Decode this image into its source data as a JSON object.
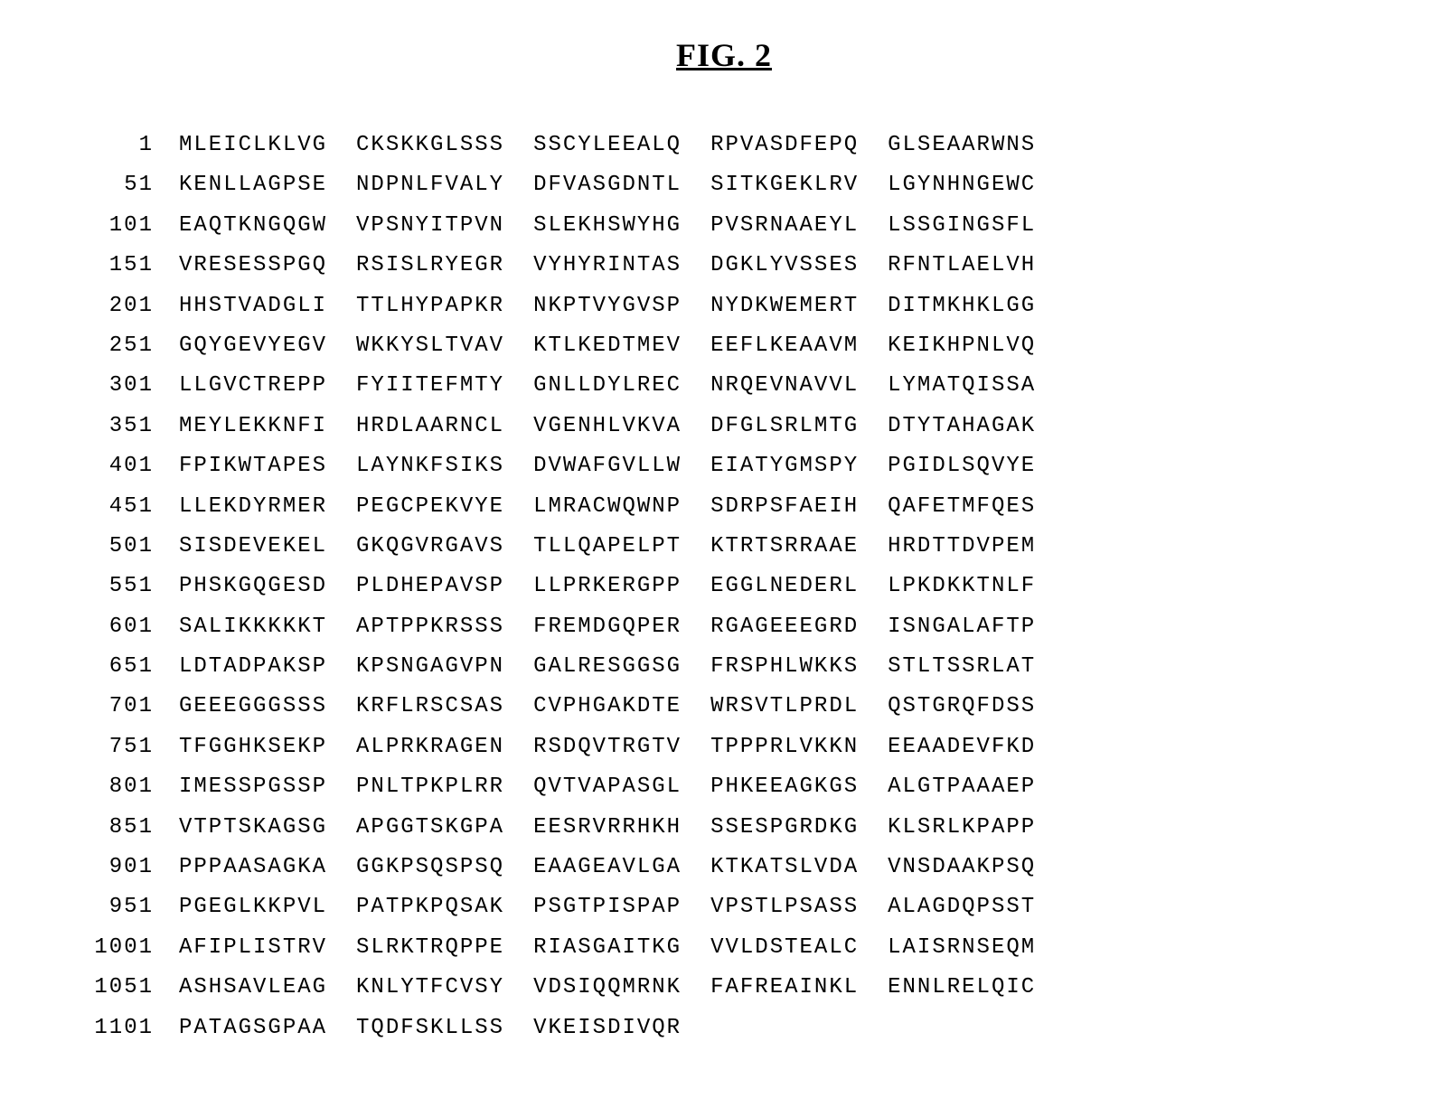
{
  "figure": {
    "title": "FIG. 2",
    "title_fontsize": 36,
    "title_font_family": "Georgia, Times New Roman, serif",
    "title_weight": "bold",
    "title_decoration": "underline"
  },
  "sequence": {
    "type": "protein_sequence_listing",
    "font_family": "Courier New, monospace",
    "font_size": 24,
    "letter_spacing": 2,
    "block_width": 10,
    "blocks_per_row": 5,
    "row_gap": 6,
    "block_gap": 32,
    "background_color": "#ffffff",
    "text_color": "#000000",
    "rows": [
      {
        "pos": "1",
        "blocks": [
          "MLEICLKLVG",
          "CKSKKGLSSS",
          "SSCYLEEALQ",
          "RPVASDFEPQ",
          "GLSEAARWNS"
        ]
      },
      {
        "pos": "51",
        "blocks": [
          "KENLLAGPSE",
          "NDPNLFVALY",
          "DFVASGDNTL",
          "SITKGEKLRV",
          "LGYNHNGEWC"
        ]
      },
      {
        "pos": "101",
        "blocks": [
          "EAQTKNGQGW",
          "VPSNYITPVN",
          "SLEKHSWYHG",
          "PVSRNAAEYL",
          "LSSGINGSFL"
        ]
      },
      {
        "pos": "151",
        "blocks": [
          "VRESESSPGQ",
          "RSISLRYEGR",
          "VYHYRINTAS",
          "DGKLYVSSES",
          "RFNTLAELVH"
        ]
      },
      {
        "pos": "201",
        "blocks": [
          "HHSTVADGLI",
          "TTLHYPAPKR",
          "NKPTVYGVSP",
          "NYDKWEMERT",
          "DITMKHKLGG"
        ]
      },
      {
        "pos": "251",
        "blocks": [
          "GQYGEVYEGV",
          "WKKYSLTVAV",
          "KTLKEDTMEV",
          "EEFLKEAAVM",
          "KEIKHPNLVQ"
        ]
      },
      {
        "pos": "301",
        "blocks": [
          "LLGVCTREPP",
          "FYIITEFMTY",
          "GNLLDYLREC",
          "NRQEVNAVVL",
          "LYMATQISSA"
        ]
      },
      {
        "pos": "351",
        "blocks": [
          "MEYLEKKNFI",
          "HRDLAARNCL",
          "VGENHLVKVA",
          "DFGLSRLMTG",
          "DTYTAHAGAK"
        ]
      },
      {
        "pos": "401",
        "blocks": [
          "FPIKWTAPES",
          "LAYNKFSIKS",
          "DVWAFGVLLW",
          "EIATYGMSPY",
          "PGIDLSQVYE"
        ]
      },
      {
        "pos": "451",
        "blocks": [
          "LLEKDYRMER",
          "PEGCPEKVYE",
          "LMRACWQWNP",
          "SDRPSFAEIH",
          "QAFETMFQES"
        ]
      },
      {
        "pos": "501",
        "blocks": [
          "SISDEVEKEL",
          "GKQGVRGAVS",
          "TLLQAPELPT",
          "KTRTSRRAAE",
          "HRDTTDVPEM"
        ]
      },
      {
        "pos": "551",
        "blocks": [
          "PHSKGQGESD",
          "PLDHEPAVSP",
          "LLPRKERGPP",
          "EGGLNEDERL",
          "LPKDKKTNLF"
        ]
      },
      {
        "pos": "601",
        "blocks": [
          "SALIKKKKKT",
          "APTPPKRSSS",
          "FREMDGQPER",
          "RGAGEEEGRD",
          "ISNGALAFTP"
        ]
      },
      {
        "pos": "651",
        "blocks": [
          "LDTADPAKSP",
          "KPSNGAGVPN",
          "GALRESGGSG",
          "FRSPHLWKKS",
          "STLTSSRLAT"
        ]
      },
      {
        "pos": "701",
        "blocks": [
          "GEEEGGGSSS",
          "KRFLRSCSAS",
          "CVPHGAKDTE",
          "WRSVTLPRDL",
          "QSTGRQFDSS"
        ]
      },
      {
        "pos": "751",
        "blocks": [
          "TFGGHKSEKP",
          "ALPRKRAGEN",
          "RSDQVTRGTV",
          "TPPPRLVKKN",
          "EEAADEVFKD"
        ]
      },
      {
        "pos": "801",
        "blocks": [
          "IMESSPGSSP",
          "PNLTPKPLRR",
          "QVTVAPASGL",
          "PHKEEAGKGS",
          "ALGTPAAAEP"
        ]
      },
      {
        "pos": "851",
        "blocks": [
          "VTPTSKAGSG",
          "APGGTSKGPA",
          "EESRVRRHKH",
          "SSESPGRDKG",
          "KLSRLKPAPP"
        ]
      },
      {
        "pos": "901",
        "blocks": [
          "PPPAASAGKA",
          "GGKPSQSPSQ",
          "EAAGEAVLGA",
          "KTKATSLVDA",
          "VNSDAAKPSQ"
        ]
      },
      {
        "pos": "951",
        "blocks": [
          "PGEGLKKPVL",
          "PATPKPQSAK",
          "PSGTPISPAP",
          "VPSTLPSASS",
          "ALAGDQPSST"
        ]
      },
      {
        "pos": "1001",
        "blocks": [
          "AFIPLISTRV",
          "SLRKTRQPPE",
          "RIASGAITKG",
          "VVLDSTEALC",
          "LAISRNSEQM"
        ]
      },
      {
        "pos": "1051",
        "blocks": [
          "ASHSAVLEAG",
          "KNLYTFCVSY",
          "VDSIQQMRNK",
          "FAFREAINKL",
          "ENNLRELQIC"
        ]
      },
      {
        "pos": "1101",
        "blocks": [
          "PATAGSGPAA",
          "TQDFSKLLSS",
          "VKEISDIVQR"
        ]
      }
    ]
  }
}
